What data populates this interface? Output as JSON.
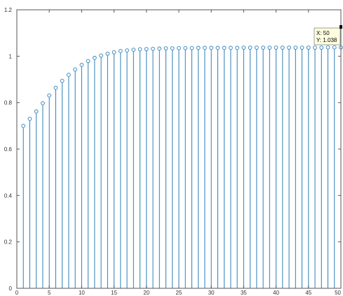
{
  "chart_data": {
    "type": "stem",
    "title": "",
    "xlabel": "",
    "ylabel": "",
    "xlim": [
      0,
      50
    ],
    "ylim": [
      0,
      1.2
    ],
    "xticks": [
      "0",
      "5",
      "10",
      "15",
      "20",
      "25",
      "30",
      "35",
      "40",
      "45",
      "50"
    ],
    "yticks": [
      "0",
      "0.2",
      "0.4",
      "0.6",
      "0.8",
      "1",
      "1.2"
    ],
    "grid": false,
    "series": [
      {
        "x": [
          1,
          2,
          3,
          4,
          5,
          6,
          7,
          8,
          9,
          10,
          11,
          12,
          13,
          14,
          15,
          16,
          17,
          18,
          19,
          20,
          21,
          22,
          23,
          24,
          25,
          26,
          27,
          28,
          29,
          30,
          31,
          32,
          33,
          34,
          35,
          36,
          37,
          38,
          39,
          40,
          41,
          42,
          43,
          44,
          45,
          46,
          47,
          48,
          49,
          50
        ],
        "values": [
          0.7,
          0.73,
          0.762,
          0.797,
          0.831,
          0.864,
          0.894,
          0.92,
          0.943,
          0.963,
          0.979,
          0.993,
          1.003,
          1.011,
          1.017,
          1.022,
          1.025,
          1.028,
          1.03,
          1.031,
          1.032,
          1.033,
          1.034,
          1.034,
          1.035,
          1.035,
          1.035,
          1.036,
          1.036,
          1.036,
          1.036,
          1.036,
          1.036,
          1.036,
          1.037,
          1.037,
          1.037,
          1.037,
          1.037,
          1.037,
          1.037,
          1.037,
          1.037,
          1.037,
          1.037,
          1.037,
          1.037,
          1.038,
          1.038,
          1.038
        ]
      }
    ],
    "colors": {
      "stem": "#2c7fb8",
      "axis": "#555555",
      "tooltip_bg": "#ffffe0"
    },
    "datatip": {
      "x_text": "X: 50",
      "y_text": "Y: 1.038"
    }
  }
}
